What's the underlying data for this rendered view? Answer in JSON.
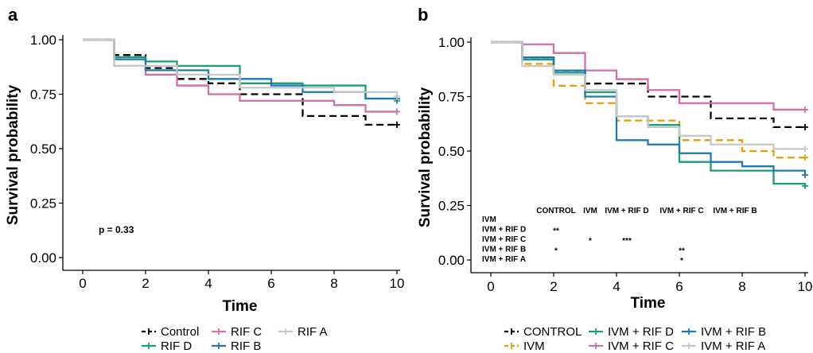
{
  "colors": {
    "control": "#000000",
    "ivm": "#E69F00",
    "rif_d": "#1A9E77",
    "rif_c": "#D16FA6",
    "rif_b": "#1F78B4",
    "rif_a": "#C8C8C8"
  },
  "chart_data": [
    {
      "type": "line",
      "subtype": "kaplan-meier step",
      "panel_label": "a",
      "xlabel": "Time",
      "ylabel": "Survival probability",
      "xlim": [
        0,
        10
      ],
      "ylim": [
        0,
        1
      ],
      "x_ticks": [
        "0",
        "2",
        "4",
        "6",
        "8",
        "10"
      ],
      "y_ticks": [
        "0.00",
        "0.25",
        "0.50",
        "0.75",
        "1.00"
      ],
      "grid": false,
      "legend_position": "bottom",
      "annotation": "p = 0.33",
      "series": [
        {
          "name": "Control",
          "color_key": "control",
          "dashed": true,
          "steps": [
            [
              0,
              1.0
            ],
            [
              1,
              0.93
            ],
            [
              2,
              0.87
            ],
            [
              3,
              0.82
            ],
            [
              4,
              0.8
            ],
            [
              5,
              0.75
            ],
            [
              7,
              0.65
            ],
            [
              9,
              0.61
            ],
            [
              10,
              0.61
            ]
          ]
        },
        {
          "name": "RIF D",
          "color_key": "rif_d",
          "dashed": false,
          "steps": [
            [
              0,
              1.0
            ],
            [
              1,
              0.92
            ],
            [
              2,
              0.9
            ],
            [
              3,
              0.88
            ],
            [
              5,
              0.8
            ],
            [
              7,
              0.79
            ],
            [
              9,
              0.73
            ],
            [
              10,
              0.72
            ]
          ]
        },
        {
          "name": "RIF C",
          "color_key": "rif_c",
          "dashed": false,
          "steps": [
            [
              0,
              1.0
            ],
            [
              1,
              0.88
            ],
            [
              2,
              0.84
            ],
            [
              3,
              0.79
            ],
            [
              4,
              0.75
            ],
            [
              5,
              0.72
            ],
            [
              8,
              0.7
            ],
            [
              9,
              0.67
            ],
            [
              10,
              0.67
            ]
          ]
        },
        {
          "name": "RIF B",
          "color_key": "rif_b",
          "dashed": false,
          "steps": [
            [
              0,
              1.0
            ],
            [
              1,
              0.91
            ],
            [
              2,
              0.86
            ],
            [
              4,
              0.82
            ],
            [
              6,
              0.79
            ],
            [
              7,
              0.76
            ],
            [
              9,
              0.73
            ],
            [
              10,
              0.73
            ]
          ]
        },
        {
          "name": "RIF A",
          "color_key": "rif_a",
          "dashed": false,
          "steps": [
            [
              0,
              1.0
            ],
            [
              1,
              0.88
            ],
            [
              3,
              0.84
            ],
            [
              5,
              0.78
            ],
            [
              8,
              0.76
            ],
            [
              10,
              0.74
            ]
          ]
        }
      ]
    },
    {
      "type": "line",
      "subtype": "kaplan-meier step",
      "panel_label": "b",
      "xlabel": "Time",
      "ylabel": "Survival probability",
      "xlim": [
        0,
        10
      ],
      "ylim": [
        0,
        1
      ],
      "x_ticks": [
        "0",
        "2",
        "4",
        "6",
        "8",
        "10"
      ],
      "y_ticks": [
        "0.00",
        "0.25",
        "0.50",
        "0.75",
        "1.00"
      ],
      "grid": false,
      "legend_position": "bottom",
      "series": [
        {
          "name": "CONTROL",
          "color_key": "control",
          "dashed": true,
          "steps": [
            [
              0,
              1.0
            ],
            [
              1,
              0.93
            ],
            [
              2,
              0.87
            ],
            [
              3,
              0.81
            ],
            [
              5,
              0.75
            ],
            [
              7,
              0.65
            ],
            [
              9,
              0.61
            ],
            [
              10,
              0.61
            ]
          ]
        },
        {
          "name": "IVM",
          "color_key": "ivm",
          "dashed": true,
          "steps": [
            [
              0,
              1.0
            ],
            [
              1,
              0.9
            ],
            [
              2,
              0.8
            ],
            [
              3,
              0.72
            ],
            [
              4,
              0.64
            ],
            [
              6,
              0.55
            ],
            [
              8,
              0.5
            ],
            [
              9,
              0.47
            ],
            [
              10,
              0.47
            ]
          ]
        },
        {
          "name": "IVM + RIF D",
          "color_key": "rif_d",
          "dashed": false,
          "steps": [
            [
              0,
              1.0
            ],
            [
              1,
              0.92
            ],
            [
              2,
              0.86
            ],
            [
              3,
              0.77
            ],
            [
              4,
              0.66
            ],
            [
              5,
              0.62
            ],
            [
              6,
              0.45
            ],
            [
              7,
              0.41
            ],
            [
              9,
              0.35
            ],
            [
              10,
              0.34
            ]
          ]
        },
        {
          "name": "IVM + RIF C",
          "color_key": "rif_c",
          "dashed": false,
          "steps": [
            [
              0,
              1.0
            ],
            [
              1,
              0.99
            ],
            [
              2,
              0.95
            ],
            [
              3,
              0.87
            ],
            [
              4,
              0.83
            ],
            [
              5,
              0.78
            ],
            [
              6,
              0.72
            ],
            [
              9,
              0.69
            ],
            [
              10,
              0.69
            ]
          ]
        },
        {
          "name": "IVM + RIF B",
          "color_key": "rif_b",
          "dashed": false,
          "steps": [
            [
              0,
              1.0
            ],
            [
              1,
              0.93
            ],
            [
              2,
              0.87
            ],
            [
              3,
              0.75
            ],
            [
              4,
              0.55
            ],
            [
              5,
              0.53
            ],
            [
              6,
              0.49
            ],
            [
              7,
              0.45
            ],
            [
              8,
              0.43
            ],
            [
              9,
              0.41
            ],
            [
              10,
              0.39
            ]
          ]
        },
        {
          "name": "IVM + RIF A",
          "color_key": "rif_a",
          "dashed": false,
          "steps": [
            [
              0,
              1.0
            ],
            [
              1,
              0.89
            ],
            [
              2,
              0.85
            ],
            [
              3,
              0.78
            ],
            [
              4,
              0.66
            ],
            [
              5,
              0.61
            ],
            [
              6,
              0.57
            ],
            [
              7,
              0.53
            ],
            [
              9,
              0.51
            ],
            [
              10,
              0.51
            ]
          ]
        }
      ],
      "significance_table": {
        "columns": [
          "CONTROL",
          "IVM",
          "IVM + RIF D",
          "IVM + RIF C",
          "IVM + RIF B"
        ],
        "rows": [
          "IVM",
          "IVM + RIF D",
          "IVM + RIF C",
          "IVM + RIF B",
          "IVM + RIF A"
        ],
        "cells": [
          [
            "",
            "",
            "",
            "",
            ""
          ],
          [
            "**",
            "",
            "",
            "",
            ""
          ],
          [
            "",
            "*",
            "***",
            "",
            ""
          ],
          [
            "*",
            "",
            "",
            "**",
            ""
          ],
          [
            "",
            "",
            "",
            "*",
            ""
          ]
        ]
      }
    }
  ]
}
